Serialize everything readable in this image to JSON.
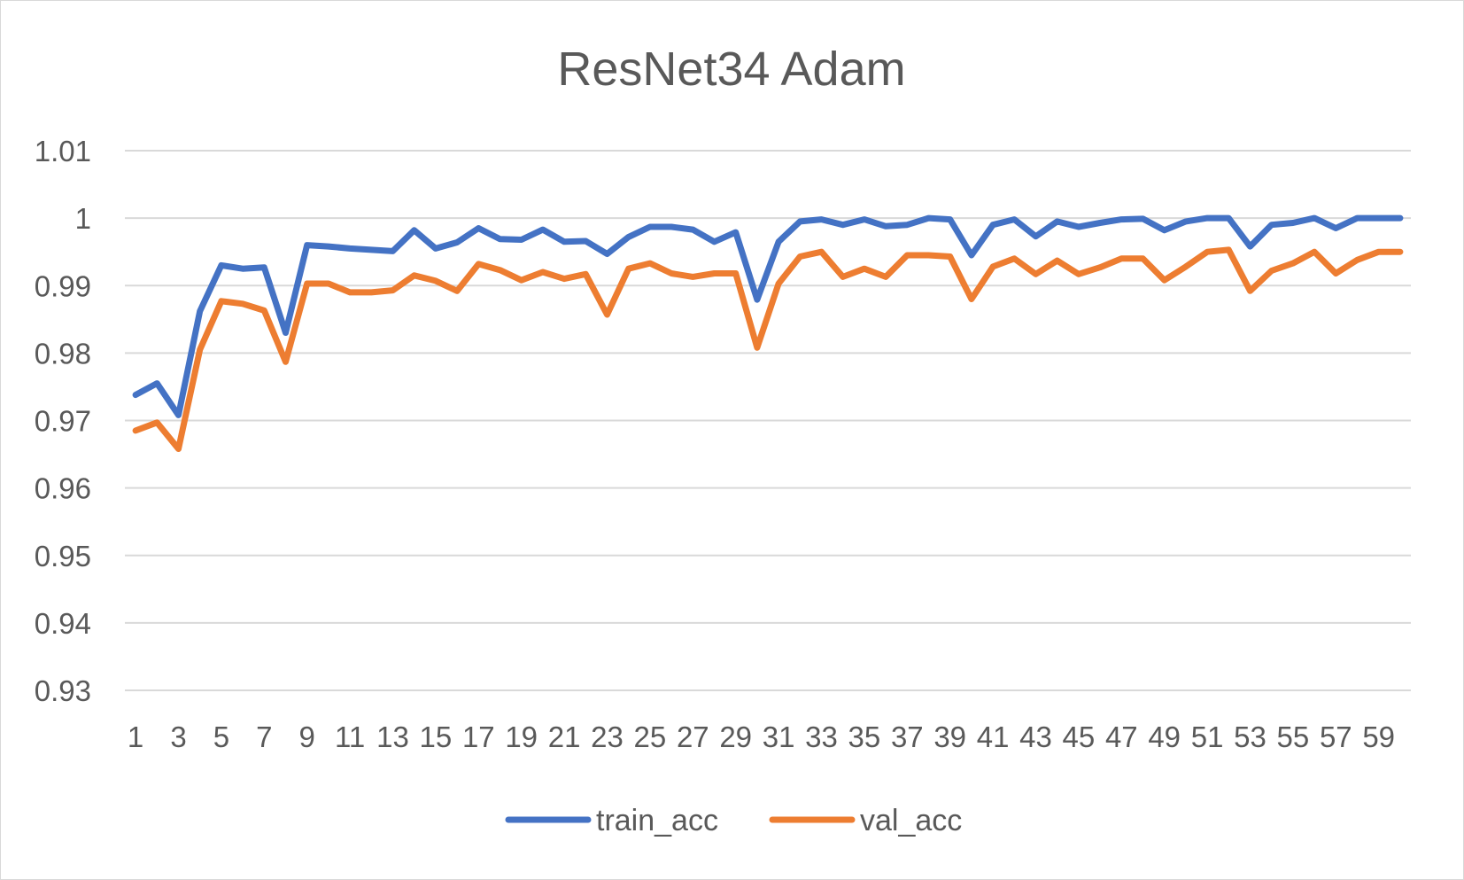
{
  "chart_data": {
    "type": "line",
    "title": "ResNet34 Adam",
    "xlabel": "",
    "ylabel": "",
    "ylim": [
      0.93,
      1.01
    ],
    "yticks": [
      "1.01",
      "1",
      "0.99",
      "0.98",
      "0.97",
      "0.96",
      "0.95",
      "0.94",
      "0.93"
    ],
    "x": [
      1,
      2,
      3,
      4,
      5,
      6,
      7,
      8,
      9,
      10,
      11,
      12,
      13,
      14,
      15,
      16,
      17,
      18,
      19,
      20,
      21,
      22,
      23,
      24,
      25,
      26,
      27,
      28,
      29,
      30,
      31,
      32,
      33,
      34,
      35,
      36,
      37,
      38,
      39,
      40,
      41,
      42,
      43,
      44,
      45,
      46,
      47,
      48,
      49,
      50,
      51,
      52,
      53,
      54,
      55,
      56,
      57,
      58,
      59,
      60
    ],
    "xtick_labels": [
      "1",
      "3",
      "5",
      "7",
      "9",
      "11",
      "13",
      "15",
      "17",
      "19",
      "21",
      "23",
      "25",
      "27",
      "29",
      "31",
      "33",
      "35",
      "37",
      "39",
      "41",
      "43",
      "45",
      "47",
      "49",
      "51",
      "53",
      "55",
      "57",
      "59"
    ],
    "grid": true,
    "legend_position": "bottom",
    "series": [
      {
        "name": "train_acc",
        "color": "#4472C4",
        "values": [
          0.9738,
          0.9755,
          0.9708,
          0.9862,
          0.993,
          0.9925,
          0.9927,
          0.983,
          0.996,
          0.9958,
          0.9955,
          0.9953,
          0.9951,
          0.9982,
          0.9955,
          0.9964,
          0.9985,
          0.9969,
          0.9968,
          0.9983,
          0.9965,
          0.9966,
          0.9947,
          0.9972,
          0.9987,
          0.9987,
          0.9983,
          0.9965,
          0.9979,
          0.9879,
          0.9965,
          0.9995,
          0.9998,
          0.999,
          0.9998,
          0.9988,
          0.999,
          1.0,
          0.9998,
          0.9945,
          0.999,
          0.9998,
          0.9973,
          0.9995,
          0.9987,
          0.9993,
          0.9998,
          0.9999,
          0.9982,
          0.9995,
          1.0,
          1.0,
          0.9958,
          0.999,
          0.9993,
          1.0,
          0.9985,
          1.0,
          1.0,
          1.0
        ]
      },
      {
        "name": "val_acc",
        "color": "#ED7D31",
        "values": [
          0.9685,
          0.9697,
          0.9658,
          0.9805,
          0.9877,
          0.9873,
          0.9863,
          0.9787,
          0.9903,
          0.9903,
          0.989,
          0.989,
          0.9893,
          0.9915,
          0.9907,
          0.9892,
          0.9932,
          0.9923,
          0.9908,
          0.992,
          0.991,
          0.9917,
          0.9857,
          0.9925,
          0.9933,
          0.9918,
          0.9913,
          0.9918,
          0.9918,
          0.9808,
          0.9903,
          0.9943,
          0.995,
          0.9913,
          0.9925,
          0.9913,
          0.9945,
          0.9945,
          0.9943,
          0.988,
          0.9928,
          0.994,
          0.9917,
          0.9937,
          0.9917,
          0.9927,
          0.994,
          0.994,
          0.9908,
          0.9928,
          0.995,
          0.9953,
          0.9892,
          0.9922,
          0.9933,
          0.995,
          0.9918,
          0.9938,
          0.995,
          0.995
        ]
      }
    ]
  }
}
